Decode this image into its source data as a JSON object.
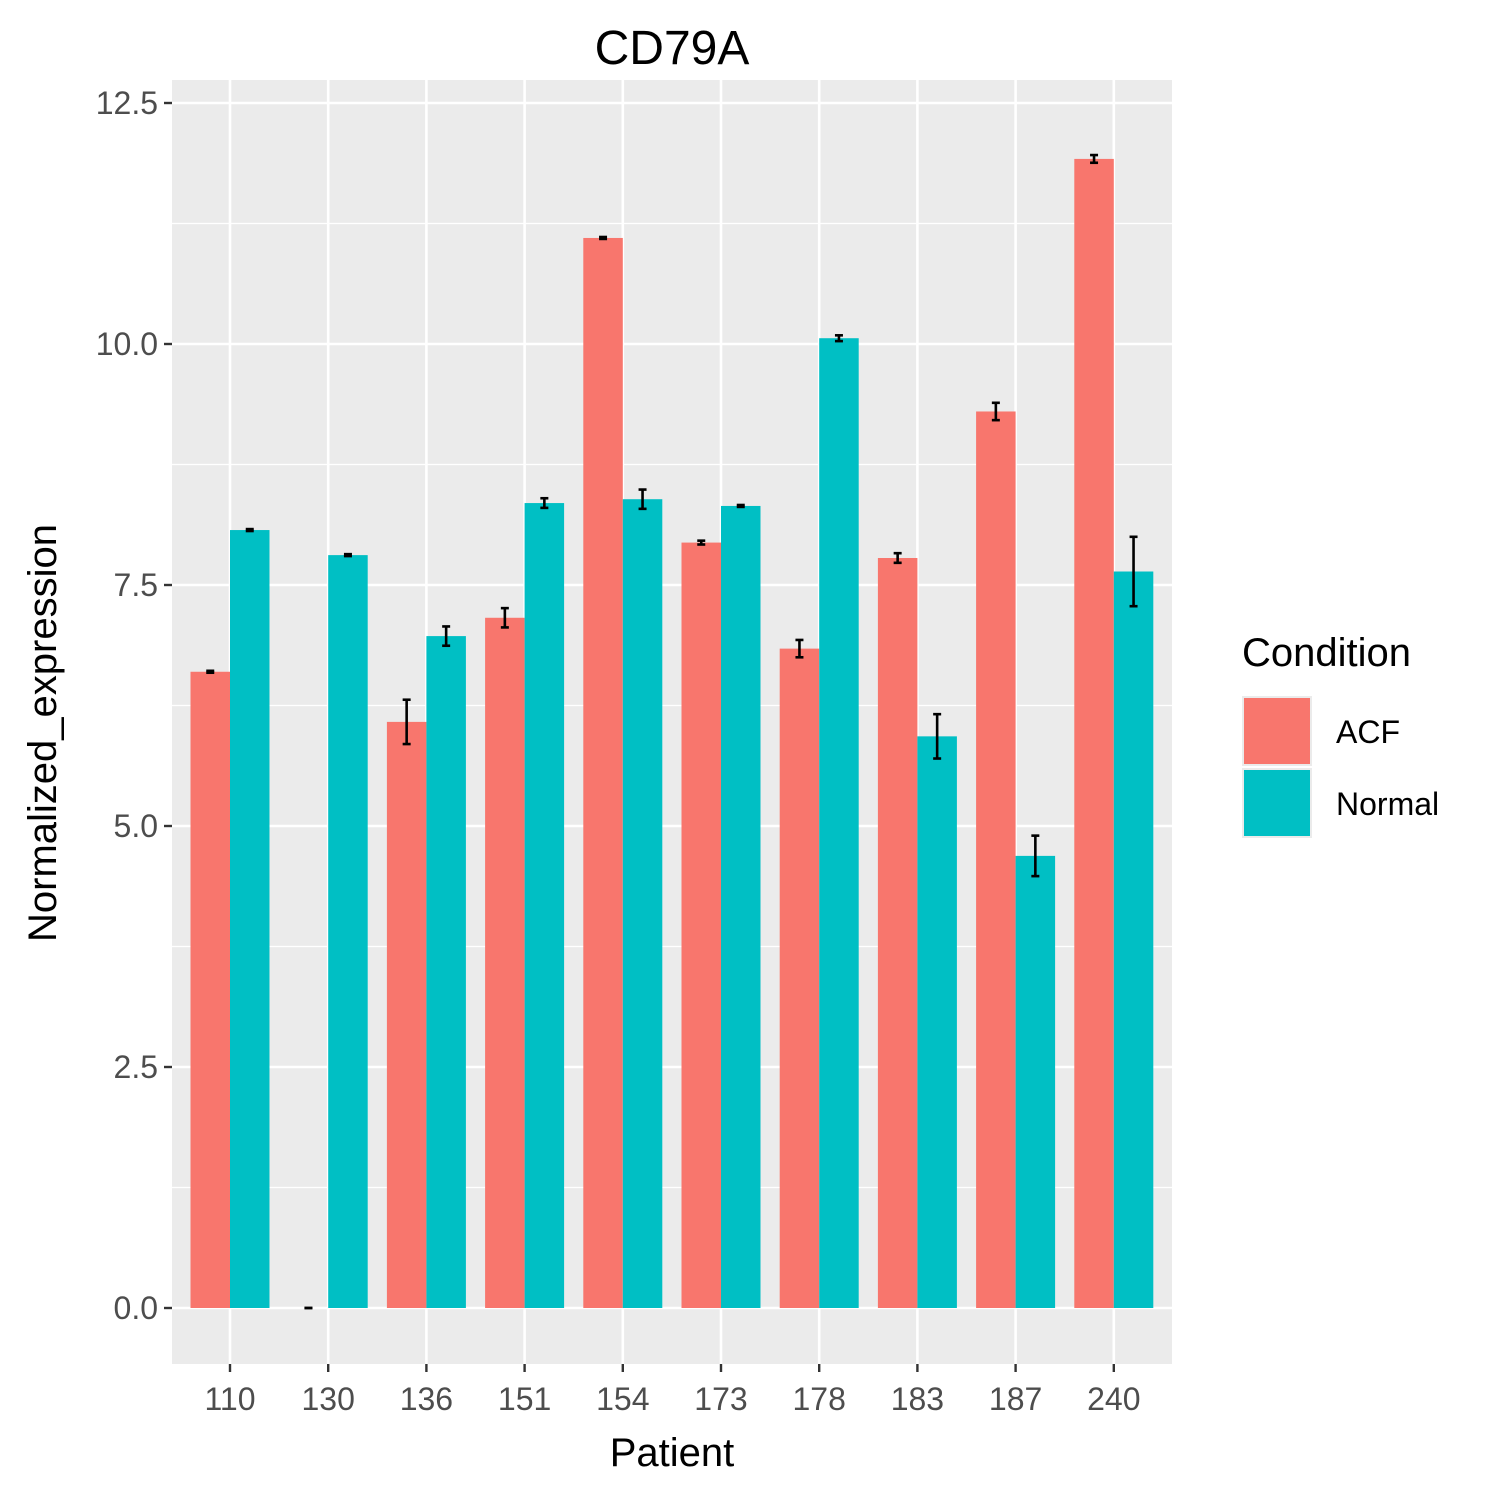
{
  "colors": {
    "panel_background": "#EBEBEB",
    "grid_major": "#FFFFFF",
    "tick_mark": "#333333",
    "error_bar": "#000000"
  },
  "chart_data": {
    "type": "bar",
    "title": "CD79A",
    "xlabel": "Patient",
    "ylabel": "Normalized_expression",
    "categories": [
      "110",
      "130",
      "136",
      "151",
      "154",
      "173",
      "178",
      "183",
      "187",
      "240"
    ],
    "ylim": [
      -0.5,
      12.5
    ],
    "yticks": [
      0.0,
      2.5,
      5.0,
      7.5,
      10.0,
      12.5
    ],
    "ytick_labels": [
      "0.0",
      "2.5",
      "5.0",
      "7.5",
      "10.0",
      "12.5"
    ],
    "grid": true,
    "legend": {
      "title": "Condition",
      "position": "right"
    },
    "series": [
      {
        "name": "ACF",
        "color": "#F8766D",
        "values": [
          6.6,
          0.0,
          6.08,
          7.16,
          11.1,
          7.94,
          6.84,
          7.78,
          9.3,
          11.92
        ],
        "error": [
          0.01,
          0.0,
          0.23,
          0.1,
          0.01,
          0.02,
          0.09,
          0.05,
          0.09,
          0.04
        ]
      },
      {
        "name": "Normal",
        "color": "#00BFC4",
        "values": [
          8.07,
          7.81,
          6.97,
          8.35,
          8.39,
          8.32,
          10.06,
          5.93,
          4.69,
          7.64
        ],
        "error": [
          0.01,
          0.01,
          0.1,
          0.05,
          0.1,
          0.01,
          0.03,
          0.23,
          0.21,
          0.36
        ]
      }
    ]
  }
}
